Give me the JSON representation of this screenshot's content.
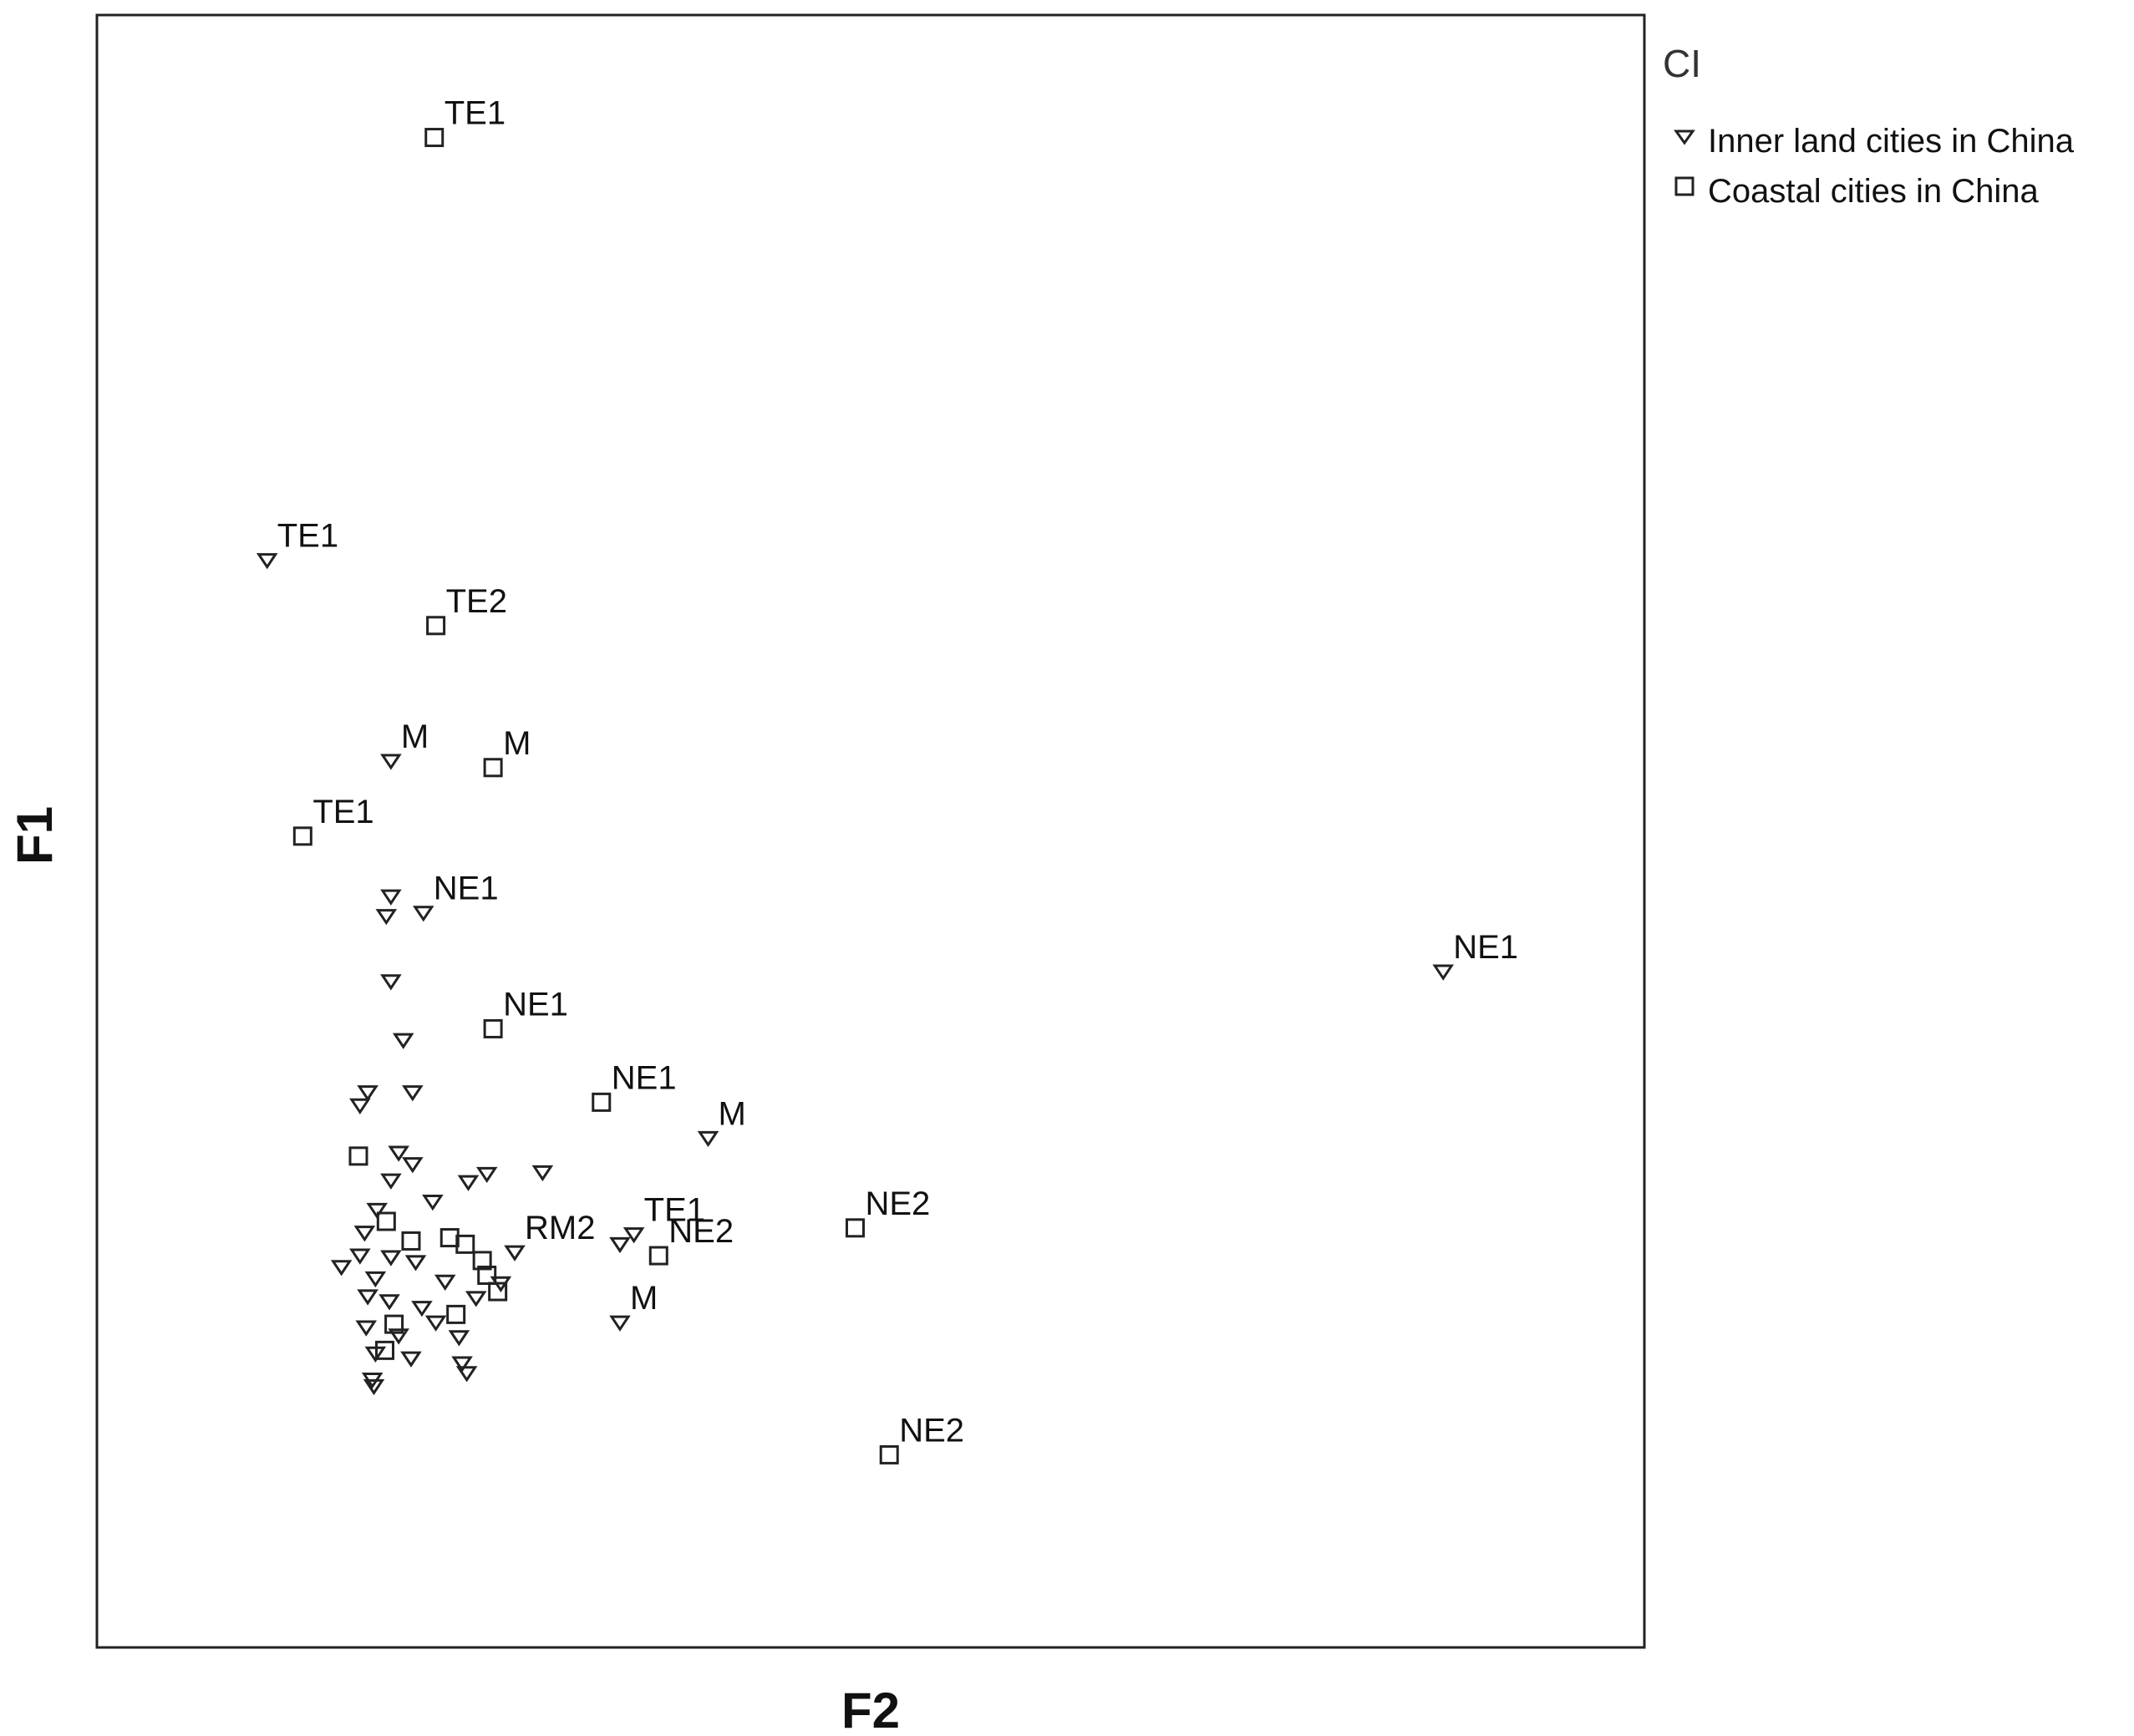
{
  "chart_data": {
    "type": "scatter",
    "title": "",
    "xlabel": "F2",
    "ylabel": "F1",
    "xlim": [
      0,
      100
    ],
    "ylim": [
      0,
      100
    ],
    "grid": false,
    "legend": {
      "title": "CI",
      "placement": "right",
      "entries": [
        {
          "name": "Inner land cities in China",
          "marker": "triangle-down"
        },
        {
          "name": "Coastal cities in China",
          "marker": "square"
        }
      ]
    },
    "colors": {
      "marker_stroke": "#222222",
      "frame": "#222222",
      "background": "#ffffff"
    },
    "series": [
      {
        "name": "Inner land cities in China",
        "marker": "triangle-down",
        "points": [
          {
            "x": 11.0,
            "y": 66.6,
            "label": "TE1"
          },
          {
            "x": 19.0,
            "y": 54.3,
            "label": "M"
          },
          {
            "x": 19.0,
            "y": 46.0,
            "label": ""
          },
          {
            "x": 18.7,
            "y": 44.8,
            "label": ""
          },
          {
            "x": 21.1,
            "y": 45.0,
            "label": "NE1"
          },
          {
            "x": 19.0,
            "y": 40.8,
            "label": ""
          },
          {
            "x": 19.8,
            "y": 37.2,
            "label": ""
          },
          {
            "x": 17.5,
            "y": 34.0,
            "label": ""
          },
          {
            "x": 20.4,
            "y": 34.0,
            "label": ""
          },
          {
            "x": 17.0,
            "y": 33.2,
            "label": ""
          },
          {
            "x": 19.5,
            "y": 30.3,
            "label": ""
          },
          {
            "x": 20.4,
            "y": 29.6,
            "label": ""
          },
          {
            "x": 19.0,
            "y": 28.6,
            "label": ""
          },
          {
            "x": 21.7,
            "y": 27.3,
            "label": ""
          },
          {
            "x": 24.0,
            "y": 28.5,
            "label": ""
          },
          {
            "x": 25.2,
            "y": 29.0,
            "label": ""
          },
          {
            "x": 28.8,
            "y": 29.1,
            "label": ""
          },
          {
            "x": 18.1,
            "y": 26.8,
            "label": ""
          },
          {
            "x": 17.3,
            "y": 25.4,
            "label": ""
          },
          {
            "x": 15.8,
            "y": 23.3,
            "label": ""
          },
          {
            "x": 17.0,
            "y": 24.0,
            "label": ""
          },
          {
            "x": 18.0,
            "y": 22.6,
            "label": ""
          },
          {
            "x": 19.0,
            "y": 23.9,
            "label": ""
          },
          {
            "x": 20.6,
            "y": 23.6,
            "label": ""
          },
          {
            "x": 22.5,
            "y": 22.4,
            "label": ""
          },
          {
            "x": 17.5,
            "y": 21.5,
            "label": ""
          },
          {
            "x": 18.9,
            "y": 21.2,
            "label": ""
          },
          {
            "x": 21.0,
            "y": 20.8,
            "label": ""
          },
          {
            "x": 24.5,
            "y": 21.4,
            "label": ""
          },
          {
            "x": 26.1,
            "y": 22.3,
            "label": ""
          },
          {
            "x": 27.0,
            "y": 24.2,
            "label": "RM2"
          },
          {
            "x": 17.4,
            "y": 19.6,
            "label": ""
          },
          {
            "x": 19.5,
            "y": 19.1,
            "label": ""
          },
          {
            "x": 21.9,
            "y": 19.9,
            "label": ""
          },
          {
            "x": 23.4,
            "y": 19.0,
            "label": ""
          },
          {
            "x": 18.0,
            "y": 18.0,
            "label": ""
          },
          {
            "x": 20.3,
            "y": 17.7,
            "label": ""
          },
          {
            "x": 17.8,
            "y": 16.4,
            "label": ""
          },
          {
            "x": 23.6,
            "y": 17.4,
            "label": ""
          },
          {
            "x": 23.9,
            "y": 16.8,
            "label": ""
          },
          {
            "x": 17.9,
            "y": 16.0,
            "label": ""
          },
          {
            "x": 33.8,
            "y": 24.7,
            "label": ""
          },
          {
            "x": 34.7,
            "y": 25.3,
            "label": "TE1"
          },
          {
            "x": 33.8,
            "y": 19.9,
            "label": "M"
          },
          {
            "x": 39.5,
            "y": 31.2,
            "label": "M"
          },
          {
            "x": 87.0,
            "y": 41.4,
            "label": "NE1"
          }
        ]
      },
      {
        "name": "Coastal cities in China",
        "marker": "square",
        "points": [
          {
            "x": 21.8,
            "y": 92.5,
            "label": "TE1"
          },
          {
            "x": 21.9,
            "y": 62.6,
            "label": "TE2"
          },
          {
            "x": 25.6,
            "y": 53.9,
            "label": "M"
          },
          {
            "x": 13.3,
            "y": 49.7,
            "label": "TE1"
          },
          {
            "x": 25.6,
            "y": 37.9,
            "label": "NE1"
          },
          {
            "x": 32.6,
            "y": 33.4,
            "label": "NE1"
          },
          {
            "x": 16.9,
            "y": 30.1,
            "label": ""
          },
          {
            "x": 18.7,
            "y": 26.1,
            "label": ""
          },
          {
            "x": 20.3,
            "y": 24.9,
            "label": ""
          },
          {
            "x": 22.8,
            "y": 25.1,
            "label": ""
          },
          {
            "x": 23.8,
            "y": 24.7,
            "label": ""
          },
          {
            "x": 24.9,
            "y": 23.7,
            "label": ""
          },
          {
            "x": 25.9,
            "y": 21.8,
            "label": ""
          },
          {
            "x": 25.2,
            "y": 22.8,
            "label": ""
          },
          {
            "x": 23.2,
            "y": 20.4,
            "label": ""
          },
          {
            "x": 19.2,
            "y": 19.8,
            "label": ""
          },
          {
            "x": 18.6,
            "y": 18.2,
            "label": ""
          },
          {
            "x": 36.3,
            "y": 24.0,
            "label": "NE2"
          },
          {
            "x": 49.0,
            "y": 25.7,
            "label": "NE2"
          },
          {
            "x": 51.2,
            "y": 11.8,
            "label": "NE2"
          }
        ]
      }
    ]
  }
}
